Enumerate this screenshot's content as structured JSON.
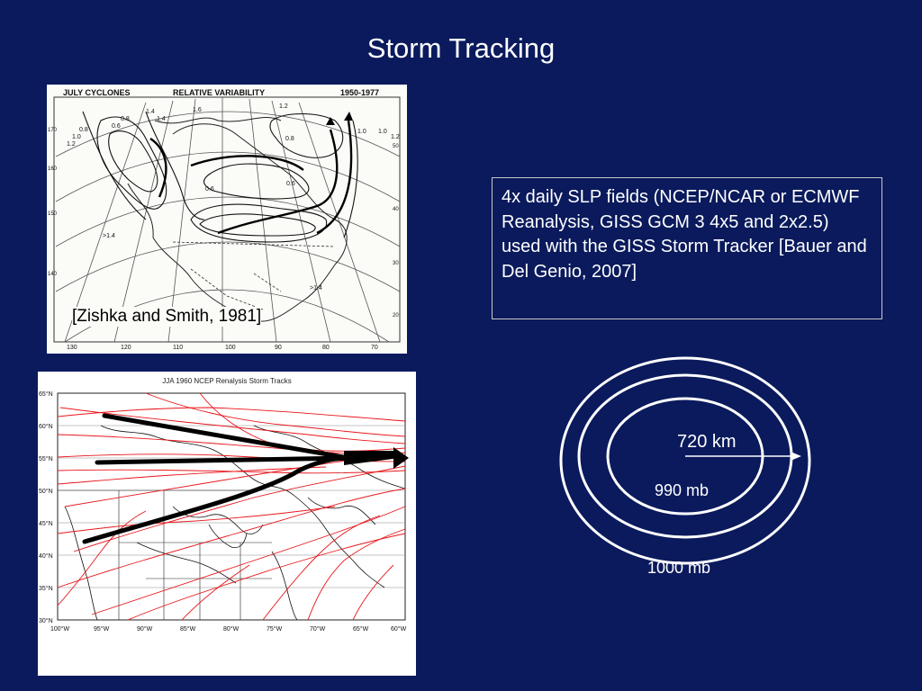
{
  "slide": {
    "title": "Storm Tracking"
  },
  "map1": {
    "header_left": "JULY CYCLONES",
    "header_center": "RELATIVE VARIABILITY",
    "header_right": "1950-1977",
    "caption": "[Zishka and Smith, 1981]",
    "contour_labels": [
      "0.8",
      "1.0",
      "1.2",
      "1.4",
      "0.6",
      "0.8",
      "1.0",
      ">1.4",
      ">1.4",
      "0.6",
      "0.6",
      "0.8",
      "1.2",
      "1.0",
      "1.2",
      "1.4",
      "1.6"
    ],
    "bottom_lon_labels": [
      "130",
      "120",
      "110",
      "100",
      "90",
      "80",
      "70"
    ],
    "left_lat_labels": [
      "170",
      "160",
      "150",
      "140"
    ],
    "right_lat_labels": [
      "50",
      "40",
      "30",
      "20"
    ]
  },
  "info_box": {
    "text": "4x daily SLP fields (NCEP/NCAR or ECMWF Reanalysis, GISS GCM 3 4x5 and 2x2.5) used with the GISS Storm Tracker [Bauer and Del Genio, 2007]"
  },
  "map2": {
    "title": "JJA 1960 NCEP Renalysis Storm Tracks",
    "lat_labels": [
      "65°N",
      "60°N",
      "55°N",
      "50°N",
      "45°N",
      "40°N",
      "35°N",
      "30°N"
    ],
    "lon_labels": [
      "100°W",
      "95°W",
      "90°W",
      "85°W",
      "80°W",
      "75°W",
      "70°W",
      "65°W",
      "60°W"
    ],
    "track_color": "#e8161b"
  },
  "diagram": {
    "radius_label": "720 km",
    "inner_label": "990 mb",
    "outer_label": "1000 mb"
  },
  "colors": {
    "background": "#0a1a5c",
    "text": "#ffffff"
  }
}
